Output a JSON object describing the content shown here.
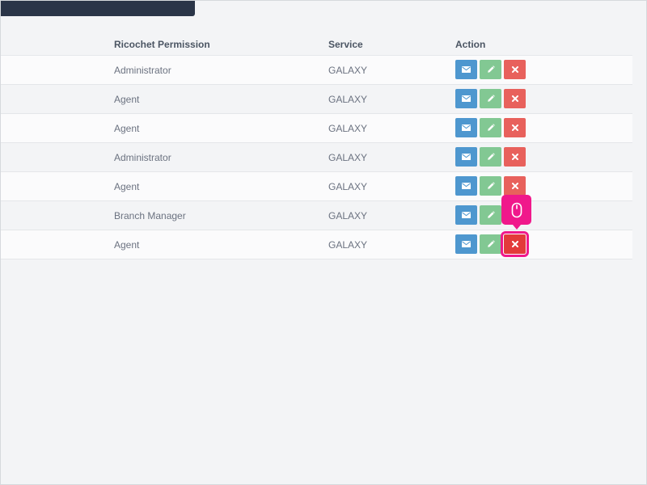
{
  "table": {
    "headers": {
      "permission": "Ricochet Permission",
      "service": "Service",
      "action": "Action"
    },
    "rows": [
      {
        "permission": "Administrator",
        "service": "GALAXY"
      },
      {
        "permission": "Agent",
        "service": "GALAXY"
      },
      {
        "permission": "Agent",
        "service": "GALAXY"
      },
      {
        "permission": "Administrator",
        "service": "GALAXY"
      },
      {
        "permission": "Agent",
        "service": "GALAXY"
      },
      {
        "permission": "Branch Manager",
        "service": "GALAXY"
      },
      {
        "permission": "Agent",
        "service": "GALAXY"
      }
    ]
  },
  "icons": {
    "mail": "envelope-icon",
    "edit": "pencil-icon",
    "delete": "close-icon",
    "cursor": "mouse-icon"
  },
  "colors": {
    "mail_button": "#4e97cf",
    "edit_button": "#82c893",
    "delete_button": "#e8615c",
    "highlight": "#f0188b",
    "top_bar": "#2a3548"
  }
}
